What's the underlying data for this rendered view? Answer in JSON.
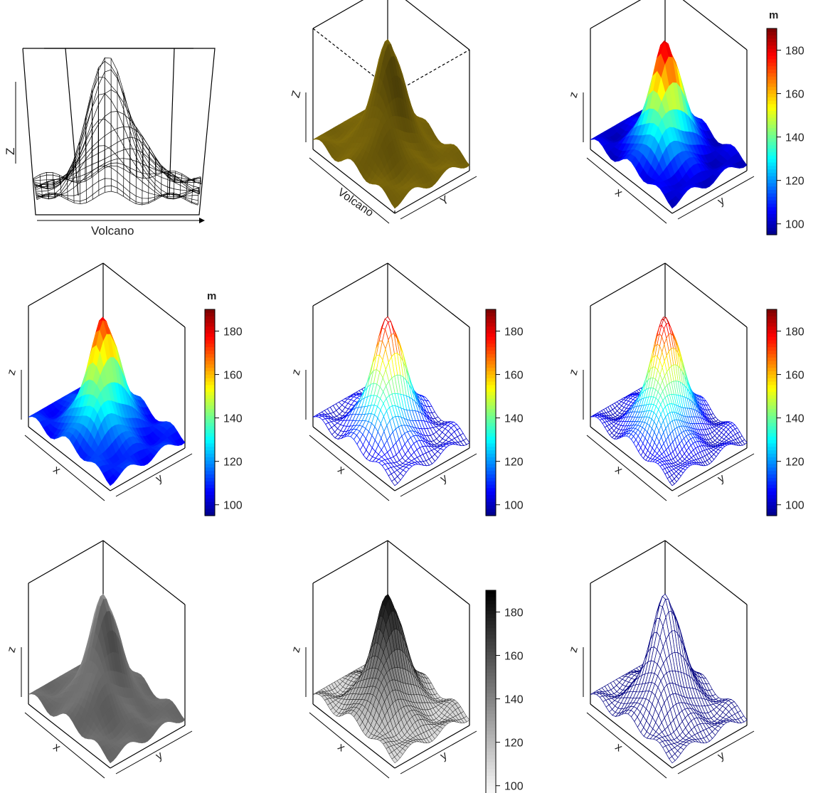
{
  "chart_data": [
    {
      "id": "p1",
      "type": "mesh-3d",
      "style": "wireframe",
      "color": "#000000",
      "xlabel": "Volcano",
      "zlabel": "Z",
      "colorkey": null
    },
    {
      "id": "p2",
      "type": "surface-3d",
      "style": "shaded",
      "color": "#b89a10",
      "xlabel": "Volcano",
      "ylabel": "Y",
      "zlabel": "Z",
      "box": "full-dashed",
      "colorkey": null
    },
    {
      "id": "p3",
      "type": "surface-3d",
      "style": "filled",
      "colormap": "jet",
      "xlabel": "x",
      "ylabel": "y",
      "zlabel": "z",
      "colorkey": {
        "title": "m",
        "ticks": [
          "100",
          "120",
          "140",
          "160",
          "180"
        ],
        "range": [
          95,
          190
        ]
      }
    },
    {
      "id": "p4",
      "type": "surface-3d",
      "style": "filled-shaded",
      "colormap": "jet",
      "xlabel": "x",
      "ylabel": "y",
      "zlabel": "z",
      "colorkey": {
        "title": "m",
        "ticks": [
          "100",
          "120",
          "140",
          "160",
          "180"
        ],
        "range": [
          95,
          190
        ]
      }
    },
    {
      "id": "p5",
      "type": "mesh-3d",
      "style": "wireframe",
      "colormap": "jet",
      "xlabel": "x",
      "ylabel": "y",
      "zlabel": "z",
      "colorkey": {
        "title": "",
        "ticks": [
          "100",
          "120",
          "140",
          "160",
          "180"
        ],
        "range": [
          95,
          190
        ]
      }
    },
    {
      "id": "p6",
      "type": "mesh-3d",
      "style": "wireframe-dense",
      "colormap": "jet",
      "xlabel": "x",
      "ylabel": "y",
      "zlabel": "z",
      "colorkey": {
        "title": "",
        "ticks": [
          "100",
          "120",
          "140",
          "160",
          "180"
        ],
        "range": [
          95,
          190
        ]
      }
    },
    {
      "id": "p7",
      "type": "surface-3d",
      "style": "shaded",
      "colormap": "gray",
      "xlabel": "x",
      "ylabel": "y",
      "zlabel": "z",
      "colorkey": null
    },
    {
      "id": "p8",
      "type": "mesh-3d",
      "style": "wireframe",
      "colormap": "gray",
      "xlabel": "x",
      "ylabel": "y",
      "zlabel": "z",
      "colorkey": {
        "title": "",
        "ticks": [
          "100",
          "120",
          "140",
          "160",
          "180"
        ],
        "range": [
          95,
          190
        ]
      }
    },
    {
      "id": "p9",
      "type": "mesh-3d",
      "style": "wireframe",
      "color": "#000080",
      "xlabel": "x",
      "ylabel": "y",
      "zlabel": "z",
      "colorkey": null
    }
  ]
}
